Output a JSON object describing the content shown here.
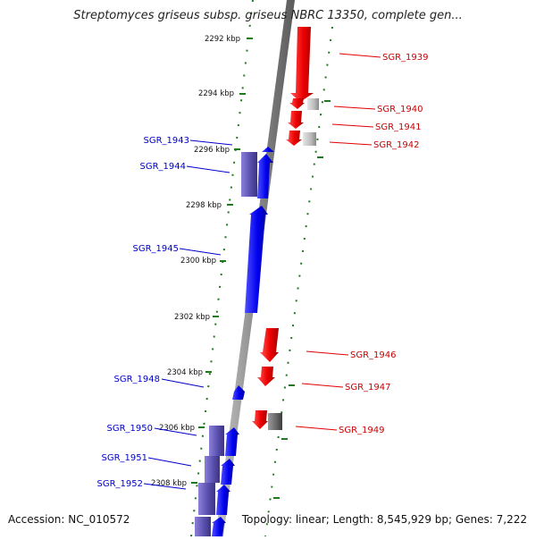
{
  "title": "Streptomyces griseus subsp. griseus NBRC 13350, complete gen...",
  "footer": {
    "accession": "Accession: NC_010572",
    "topology": "Topology: linear; Length: 8,545,929 bp; Genes: 7,222"
  },
  "colors": {
    "forward": "#ee0000",
    "reverse": "#0000ee",
    "reverse_dim": "#5a50b0",
    "pseudo": "#bbbbbb",
    "pseudo_dark": "#666666",
    "ruler": "#1f7a1f",
    "axis": "#8c8c8c"
  },
  "ruler": [
    {
      "label": "2292 kbp"
    },
    {
      "label": "2294 kbp"
    },
    {
      "label": "2296 kbp"
    },
    {
      "label": "2298 kbp"
    },
    {
      "label": "2300 kbp"
    },
    {
      "label": "2302 kbp"
    },
    {
      "label": "2304 kbp"
    },
    {
      "label": "2306 kbp"
    },
    {
      "label": "2308 kbp"
    }
  ],
  "genes_right": [
    {
      "label": "SGR_1939"
    },
    {
      "label": "SGR_1940"
    },
    {
      "label": "SGR_1941"
    },
    {
      "label": "SGR_1942"
    },
    {
      "label": "SGR_1946"
    },
    {
      "label": "SGR_1947"
    },
    {
      "label": "SGR_1949"
    }
  ],
  "genes_left": [
    {
      "label": "SGR_1943"
    },
    {
      "label": "SGR_1944"
    },
    {
      "label": "SGR_1945"
    },
    {
      "label": "SGR_1948"
    },
    {
      "label": "SGR_1950"
    },
    {
      "label": "SGR_1951"
    },
    {
      "label": "SGR_1952"
    }
  ]
}
